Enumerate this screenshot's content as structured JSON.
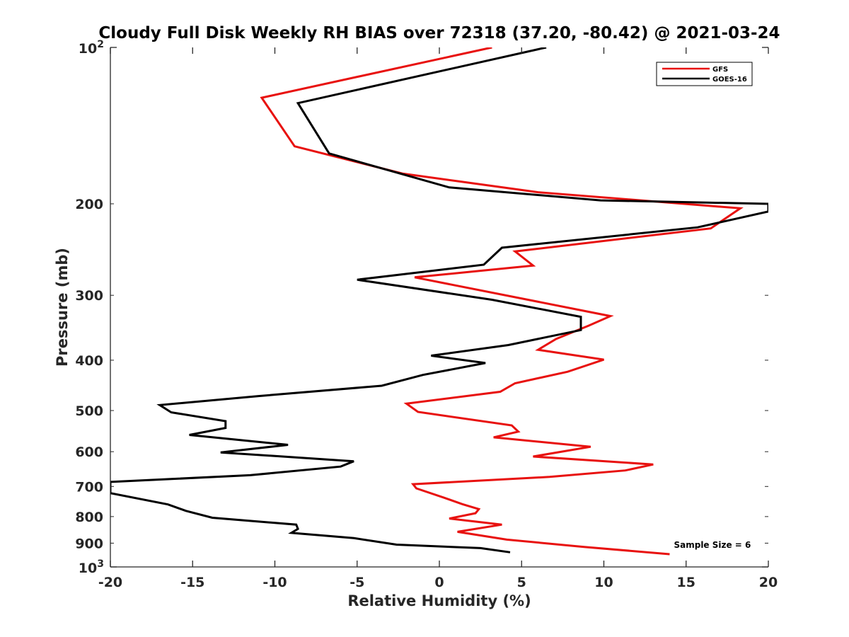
{
  "chart_data": {
    "type": "line",
    "title": "Cloudy Full Disk Weekly RH BIAS over 72318 (37.20, -80.42) @ 2021-03-24",
    "xlabel": "Relative Humidity (%)",
    "ylabel": "Pressure (mb)",
    "xlim": [
      -20,
      20
    ],
    "ylim": [
      100,
      1000
    ],
    "yscale": "log",
    "y_reversed": true,
    "grid": false,
    "legend_position": "top-right",
    "x_ticks": [
      -20,
      -15,
      -10,
      -5,
      0,
      5,
      10,
      15,
      20
    ],
    "x_tick_labels": [
      "-20",
      "-15",
      "-10",
      "-5",
      "0",
      "5",
      "10",
      "15",
      "20"
    ],
    "y_ticks": [
      200,
      300,
      400,
      500,
      600,
      700,
      800,
      900
    ],
    "y_tick_labels": [
      "200",
      "300",
      "400",
      "500",
      "600",
      "700",
      "800",
      "900"
    ],
    "y_major_ticks": [
      {
        "value": 100,
        "base": "10",
        "exp": "2"
      },
      {
        "value": 1000,
        "base": "10",
        "exp": "3"
      }
    ],
    "series": [
      {
        "name": "GFS",
        "color": "#e8110f",
        "points": [
          [
            3.2,
            100
          ],
          [
            -10.8,
            125
          ],
          [
            -8.8,
            155
          ],
          [
            -2.2,
            175
          ],
          [
            6.0,
            190
          ],
          [
            18.3,
            204
          ],
          [
            16.5,
            223
          ],
          [
            4.6,
            247
          ],
          [
            5.7,
            263
          ],
          [
            -1.5,
            277
          ],
          [
            10.4,
            329
          ],
          [
            9.1,
            343
          ],
          [
            7.1,
            364
          ],
          [
            6.0,
            382
          ],
          [
            10.0,
            399
          ],
          [
            7.8,
            421
          ],
          [
            4.6,
            443
          ],
          [
            3.7,
            460
          ],
          [
            -2.0,
            485
          ],
          [
            -1.3,
            503
          ],
          [
            4.4,
            534
          ],
          [
            4.8,
            549
          ],
          [
            3.3,
            563
          ],
          [
            9.2,
            587
          ],
          [
            5.7,
            613
          ],
          [
            13.0,
            635
          ],
          [
            11.3,
            652
          ],
          [
            6.7,
            671
          ],
          [
            -1.6,
            693
          ],
          [
            -1.4,
            706
          ],
          [
            0.3,
            736
          ],
          [
            1.4,
            757
          ],
          [
            2.4,
            774
          ],
          [
            2.2,
            788
          ],
          [
            0.6,
            807
          ],
          [
            3.8,
            829
          ],
          [
            1.1,
            856
          ],
          [
            4.1,
            886
          ],
          [
            8.8,
            915
          ],
          [
            14.0,
            945
          ]
        ]
      },
      {
        "name": "GOES-16",
        "color": "#000000",
        "points": [
          [
            6.5,
            100
          ],
          [
            -8.6,
            128
          ],
          [
            -6.7,
            160
          ],
          [
            0.6,
            186
          ],
          [
            9.8,
            197
          ],
          [
            20.0,
            200
          ],
          [
            20.0,
            207
          ],
          [
            15.7,
            222
          ],
          [
            3.8,
            243
          ],
          [
            2.7,
            262
          ],
          [
            -5.0,
            280
          ],
          [
            3.2,
            306
          ],
          [
            8.6,
            330
          ],
          [
            8.6,
            350
          ],
          [
            4.2,
            374
          ],
          [
            -0.5,
            392
          ],
          [
            2.8,
            405
          ],
          [
            -1.0,
            427
          ],
          [
            -3.5,
            448
          ],
          [
            -11.0,
            469
          ],
          [
            -17.0,
            488
          ],
          [
            -16.3,
            504
          ],
          [
            -13.0,
            524
          ],
          [
            -13.0,
            540
          ],
          [
            -15.2,
            557
          ],
          [
            -9.2,
            582
          ],
          [
            -13.3,
            602
          ],
          [
            -5.2,
            626
          ],
          [
            -6.0,
            641
          ],
          [
            -11.5,
            666
          ],
          [
            -20.0,
            686
          ],
          [
            -20.0,
            721
          ],
          [
            -16.5,
            758
          ],
          [
            -15.4,
            780
          ],
          [
            -13.8,
            804
          ],
          [
            -8.7,
            829
          ],
          [
            -8.6,
            845
          ],
          [
            -9.0,
            860
          ],
          [
            -5.2,
            880
          ],
          [
            -2.6,
            906
          ],
          [
            2.5,
            920
          ],
          [
            4.3,
            937
          ]
        ]
      }
    ],
    "annotations": [
      {
        "text": "Sample Size = 6",
        "x": 16.6,
        "y": 907
      }
    ]
  }
}
